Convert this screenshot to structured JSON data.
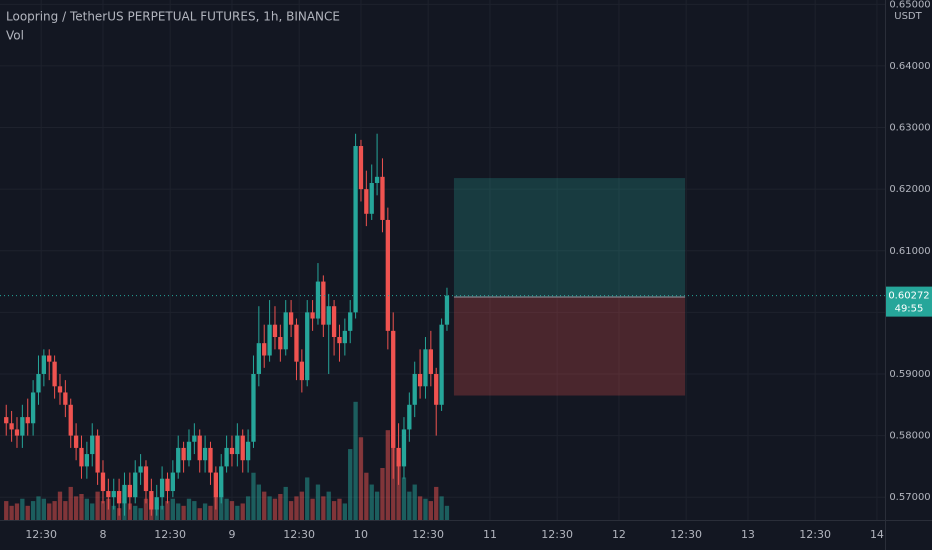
{
  "chart_data": {
    "type": "candlestick",
    "title": "Loopring / TetherUS PERPETUAL FUTURES, 1h, BINANCE",
    "volume_label": "Vol",
    "currency": "USDT",
    "up_color": "#26a69a",
    "down_color": "#ef5350",
    "open": [
      0.583,
      0.582,
      0.581,
      0.58,
      0.583,
      0.582,
      0.587,
      0.59,
      0.593,
      0.592,
      0.588,
      0.587,
      0.585,
      0.58,
      0.578,
      0.575,
      0.577,
      0.58,
      0.574,
      0.571,
      0.57,
      0.571,
      0.569,
      0.572,
      0.57,
      0.574,
      0.575,
      0.571,
      0.568,
      0.57,
      0.573,
      0.571,
      0.574,
      0.578,
      0.576,
      0.579,
      0.58,
      0.576,
      0.578,
      0.574,
      0.57,
      0.575,
      0.578,
      0.577,
      0.58,
      0.576,
      0.579,
      0.59,
      0.595,
      0.593,
      0.598,
      0.596,
      0.594,
      0.6,
      0.598,
      0.592,
      0.589,
      0.6,
      0.599,
      0.605,
      0.598,
      0.601,
      0.596,
      0.595,
      0.597,
      0.6,
      0.627,
      0.62,
      0.616,
      0.621,
      0.622,
      0.615,
      0.597,
      0.578,
      0.575,
      0.581,
      0.585,
      0.59,
      0.588,
      0.594,
      0.59,
      0.585,
      0.598
    ],
    "high": [
      0.585,
      0.584,
      0.583,
      0.585,
      0.586,
      0.589,
      0.593,
      0.594,
      0.594,
      0.593,
      0.59,
      0.589,
      0.586,
      0.582,
      0.58,
      0.579,
      0.582,
      0.581,
      0.576,
      0.573,
      0.573,
      0.573,
      0.574,
      0.574,
      0.576,
      0.577,
      0.576,
      0.573,
      0.572,
      0.575,
      0.574,
      0.576,
      0.58,
      0.579,
      0.581,
      0.582,
      0.581,
      0.58,
      0.579,
      0.575,
      0.577,
      0.58,
      0.58,
      0.582,
      0.581,
      0.581,
      0.593,
      0.601,
      0.598,
      0.602,
      0.601,
      0.598,
      0.602,
      0.602,
      0.599,
      0.594,
      0.602,
      0.602,
      0.608,
      0.606,
      0.603,
      0.602,
      0.598,
      0.599,
      0.602,
      0.629,
      0.628,
      0.623,
      0.624,
      0.629,
      0.625,
      0.617,
      0.6,
      0.582,
      0.583,
      0.587,
      0.592,
      0.594,
      0.596,
      0.597,
      0.591,
      0.599,
      0.604
    ],
    "low": [
      0.58,
      0.579,
      0.578,
      0.578,
      0.58,
      0.58,
      0.585,
      0.588,
      0.589,
      0.586,
      0.585,
      0.583,
      0.578,
      0.576,
      0.573,
      0.573,
      0.575,
      0.572,
      0.569,
      0.568,
      0.568,
      0.567,
      0.567,
      0.568,
      0.569,
      0.572,
      0.569,
      0.567,
      0.567,
      0.568,
      0.569,
      0.57,
      0.573,
      0.574,
      0.575,
      0.577,
      0.574,
      0.574,
      0.572,
      0.568,
      0.569,
      0.574,
      0.575,
      0.575,
      0.574,
      0.574,
      0.578,
      0.588,
      0.591,
      0.592,
      0.594,
      0.592,
      0.593,
      0.596,
      0.589,
      0.587,
      0.588,
      0.597,
      0.598,
      0.596,
      0.59,
      0.593,
      0.592,
      0.593,
      0.595,
      0.599,
      0.618,
      0.614,
      0.615,
      0.619,
      0.613,
      0.594,
      0.573,
      0.572,
      0.573,
      0.579,
      0.583,
      0.586,
      0.586,
      0.588,
      0.58,
      0.584,
      0.597
    ],
    "close": [
      0.582,
      0.581,
      0.58,
      0.583,
      0.582,
      0.587,
      0.59,
      0.593,
      0.592,
      0.588,
      0.587,
      0.585,
      0.58,
      0.578,
      0.575,
      0.577,
      0.58,
      0.574,
      0.571,
      0.57,
      0.571,
      0.569,
      0.572,
      0.57,
      0.574,
      0.575,
      0.571,
      0.568,
      0.57,
      0.573,
      0.571,
      0.574,
      0.578,
      0.576,
      0.579,
      0.58,
      0.576,
      0.578,
      0.574,
      0.57,
      0.575,
      0.578,
      0.577,
      0.58,
      0.576,
      0.579,
      0.59,
      0.595,
      0.593,
      0.598,
      0.596,
      0.594,
      0.6,
      0.598,
      0.592,
      0.589,
      0.6,
      0.599,
      0.605,
      0.598,
      0.601,
      0.596,
      0.595,
      0.597,
      0.6,
      0.627,
      0.62,
      0.616,
      0.621,
      0.622,
      0.615,
      0.597,
      0.578,
      0.575,
      0.581,
      0.585,
      0.59,
      0.588,
      0.594,
      0.59,
      0.585,
      0.598,
      0.60272
    ],
    "volume": [
      8,
      6,
      7,
      9,
      6,
      8,
      10,
      9,
      7,
      8,
      12,
      8,
      14,
      10,
      11,
      9,
      7,
      12,
      8,
      9,
      6,
      5,
      8,
      7,
      6,
      5,
      9,
      7,
      5,
      6,
      8,
      9,
      7,
      6,
      9,
      8,
      5,
      7,
      6,
      10,
      12,
      9,
      8,
      6,
      7,
      10,
      20,
      15,
      12,
      10,
      9,
      11,
      14,
      8,
      10,
      12,
      18,
      9,
      15,
      10,
      12,
      8,
      9,
      7,
      30,
      50,
      35,
      20,
      15,
      12,
      22,
      38,
      55,
      25,
      18,
      12,
      15,
      10,
      9,
      8,
      14,
      10,
      6
    ],
    "volume_lim": [
      0,
      220
    ],
    "ylim": [
      0.5663,
      0.6507
    ],
    "yticks": [
      {
        "value": 0.57,
        "label": "0.57000"
      },
      {
        "value": 0.58,
        "label": "0.58000"
      },
      {
        "value": 0.59,
        "label": "0.59000"
      },
      {
        "value": 0.6,
        "label": "0.60000"
      },
      {
        "value": 0.61,
        "label": "0.61000"
      },
      {
        "value": 0.62,
        "label": "0.62000"
      },
      {
        "value": 0.63,
        "label": "0.63000"
      },
      {
        "value": 0.64,
        "label": "0.64000"
      },
      {
        "value": 0.65,
        "label": "0.65000"
      }
    ],
    "xlim": [
      -1.16,
      163.5
    ],
    "xticks": [
      {
        "value": 6.5,
        "label": "12:30"
      },
      {
        "value": 18,
        "label": "8"
      },
      {
        "value": 30.5,
        "label": "12:30"
      },
      {
        "value": 42,
        "label": "9"
      },
      {
        "value": 54.5,
        "label": "12:30"
      },
      {
        "value": 66,
        "label": "10"
      },
      {
        "value": 78.5,
        "label": "12:30"
      },
      {
        "value": 90,
        "label": "11"
      },
      {
        "value": 102.5,
        "label": "12:30"
      },
      {
        "value": 114,
        "label": "12"
      },
      {
        "value": 126.5,
        "label": "12:30"
      },
      {
        "value": 138,
        "label": "13"
      },
      {
        "value": 150.5,
        "label": "12:30"
      },
      {
        "value": 162,
        "label": "14"
      }
    ],
    "last_price": {
      "value": 0.60272,
      "label": "0.60272"
    },
    "countdown": "49:55",
    "position": {
      "start": 83.3,
      "end": 126.3,
      "entry": 0.6025,
      "target": 0.6218,
      "stop": 0.5865
    }
  }
}
